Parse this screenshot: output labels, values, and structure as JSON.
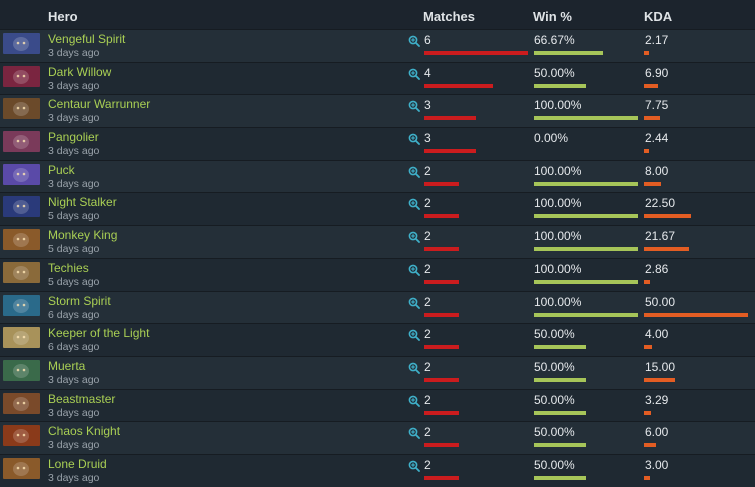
{
  "header": {
    "hero": "Hero",
    "matches": "Matches",
    "win": "Win %",
    "kda": "KDA"
  },
  "max_matches": 6,
  "max_kda": 50,
  "rows": [
    {
      "hero": "Vengeful Spirit",
      "time": "3 days ago",
      "matches": "6",
      "win": "66.67%",
      "kda": "2.17",
      "matches_n": 6,
      "win_n": 66.67,
      "kda_n": 2.17,
      "icon": "vengeful-spirit-portrait",
      "color": "#3a4b8a"
    },
    {
      "hero": "Dark Willow",
      "time": "3 days ago",
      "matches": "4",
      "win": "50.00%",
      "kda": "6.90",
      "matches_n": 4,
      "win_n": 50,
      "kda_n": 6.9,
      "icon": "dark-willow-portrait",
      "color": "#7a2540"
    },
    {
      "hero": "Centaur Warrunner",
      "time": "3 days ago",
      "matches": "3",
      "win": "100.00%",
      "kda": "7.75",
      "matches_n": 3,
      "win_n": 100,
      "kda_n": 7.75,
      "icon": "centaur-warrunner-portrait",
      "color": "#6b4a2a"
    },
    {
      "hero": "Pangolier",
      "time": "3 days ago",
      "matches": "3",
      "win": "0.00%",
      "kda": "2.44",
      "matches_n": 3,
      "win_n": 0,
      "kda_n": 2.44,
      "icon": "pangolier-portrait",
      "color": "#7a3a5a"
    },
    {
      "hero": "Puck",
      "time": "3 days ago",
      "matches": "2",
      "win": "100.00%",
      "kda": "8.00",
      "matches_n": 2,
      "win_n": 100,
      "kda_n": 8,
      "icon": "puck-portrait",
      "color": "#5a4aa8"
    },
    {
      "hero": "Night Stalker",
      "time": "5 days ago",
      "matches": "2",
      "win": "100.00%",
      "kda": "22.50",
      "matches_n": 2,
      "win_n": 100,
      "kda_n": 22.5,
      "icon": "night-stalker-portrait",
      "color": "#2a3a7a"
    },
    {
      "hero": "Monkey King",
      "time": "5 days ago",
      "matches": "2",
      "win": "100.00%",
      "kda": "21.67",
      "matches_n": 2,
      "win_n": 100,
      "kda_n": 21.67,
      "icon": "monkey-king-portrait",
      "color": "#8a5a2a"
    },
    {
      "hero": "Techies",
      "time": "5 days ago",
      "matches": "2",
      "win": "100.00%",
      "kda": "2.86",
      "matches_n": 2,
      "win_n": 100,
      "kda_n": 2.86,
      "icon": "techies-portrait",
      "color": "#8a6a3a"
    },
    {
      "hero": "Storm Spirit",
      "time": "6 days ago",
      "matches": "2",
      "win": "100.00%",
      "kda": "50.00",
      "matches_n": 2,
      "win_n": 100,
      "kda_n": 50,
      "icon": "storm-spirit-portrait",
      "color": "#2a6a8a"
    },
    {
      "hero": "Keeper of the Light",
      "time": "6 days ago",
      "matches": "2",
      "win": "50.00%",
      "kda": "4.00",
      "matches_n": 2,
      "win_n": 50,
      "kda_n": 4,
      "icon": "keeper-of-the-light-portrait",
      "color": "#a8925a"
    },
    {
      "hero": "Muerta",
      "time": "3 days ago",
      "matches": "2",
      "win": "50.00%",
      "kda": "15.00",
      "matches_n": 2,
      "win_n": 50,
      "kda_n": 15,
      "icon": "muerta-portrait",
      "color": "#3a6a4a"
    },
    {
      "hero": "Beastmaster",
      "time": "3 days ago",
      "matches": "2",
      "win": "50.00%",
      "kda": "3.29",
      "matches_n": 2,
      "win_n": 50,
      "kda_n": 3.29,
      "icon": "beastmaster-portrait",
      "color": "#7a4a2a"
    },
    {
      "hero": "Chaos Knight",
      "time": "3 days ago",
      "matches": "2",
      "win": "50.00%",
      "kda": "6.00",
      "matches_n": 2,
      "win_n": 50,
      "kda_n": 6,
      "icon": "chaos-knight-portrait",
      "color": "#8a3a1a"
    },
    {
      "hero": "Lone Druid",
      "time": "3 days ago",
      "matches": "2",
      "win": "50.00%",
      "kda": "3.00",
      "matches_n": 2,
      "win_n": 50,
      "kda_n": 3,
      "icon": "lone-druid-portrait",
      "color": "#8a5a2a"
    }
  ]
}
